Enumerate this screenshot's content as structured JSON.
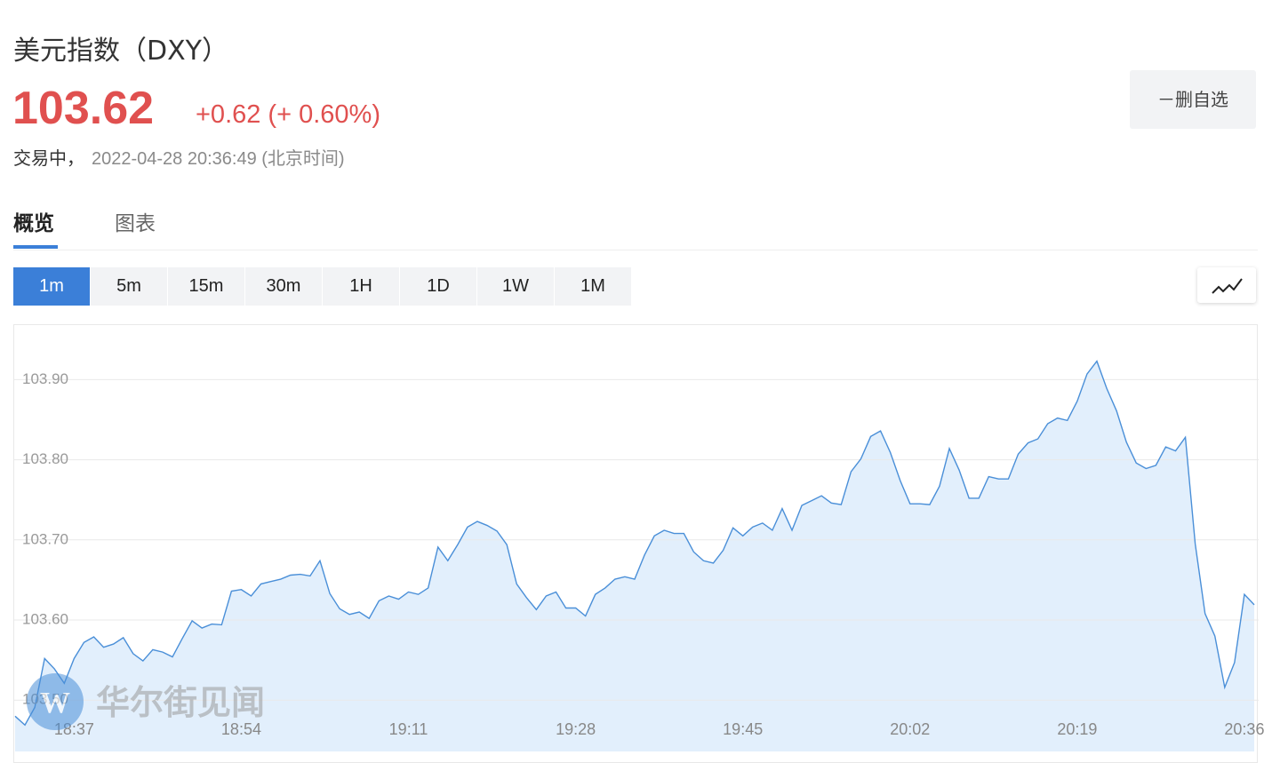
{
  "header": {
    "title": "美元指数（DXY）",
    "price": "103.62",
    "change": "+0.62 (+ 0.60%)",
    "status": "交易中，",
    "timestamp": "2022-04-28 20:36:49 (北京时间)",
    "watchlist_button": "－删自选"
  },
  "tabs": [
    "概览",
    "图表"
  ],
  "intervals": [
    "1m",
    "5m",
    "15m",
    "30m",
    "1H",
    "1D",
    "1W",
    "1M"
  ],
  "watermark": "华尔街见闻",
  "chart_data": {
    "type": "area",
    "color": "#4a8fd8",
    "fill_color": "#e2effc",
    "categories": [
      null,
      null,
      null,
      null,
      null,
      null,
      "18:37",
      null,
      null,
      null,
      null,
      null,
      null,
      null,
      null,
      null,
      null,
      null,
      null,
      null,
      null,
      null,
      null,
      "18:54",
      null,
      null,
      null,
      null,
      null,
      null,
      null,
      null,
      null,
      null,
      null,
      null,
      null,
      null,
      null,
      null,
      "19:11",
      null,
      null,
      null,
      null,
      null,
      null,
      null,
      null,
      null,
      null,
      null,
      null,
      null,
      null,
      null,
      null,
      "19:28",
      null,
      null,
      null,
      null,
      null,
      null,
      null,
      null,
      null,
      null,
      null,
      null,
      null,
      null,
      null,
      null,
      "19:45",
      null,
      null,
      null,
      null,
      null,
      null,
      null,
      null,
      null,
      null,
      null,
      null,
      null,
      null,
      null,
      null,
      "20:02",
      null,
      null,
      null,
      null,
      null,
      null,
      null,
      null,
      null,
      null,
      null,
      null,
      null,
      null,
      null,
      null,
      "20:19",
      null,
      null,
      null,
      null,
      null,
      null,
      null,
      null,
      null,
      null,
      null,
      null,
      null,
      null,
      null,
      null,
      "20:36",
      null
    ],
    "values": [
      103.48,
      103.469,
      103.491,
      103.552,
      103.539,
      103.521,
      103.552,
      103.572,
      103.579,
      103.566,
      103.57,
      103.578,
      103.558,
      103.549,
      103.563,
      103.56,
      103.554,
      103.577,
      103.599,
      103.59,
      103.595,
      103.594,
      103.636,
      103.638,
      103.63,
      103.645,
      103.648,
      103.651,
      103.656,
      103.657,
      103.655,
      103.674,
      103.633,
      103.614,
      103.607,
      103.61,
      103.602,
      103.624,
      103.63,
      103.626,
      103.635,
      103.632,
      103.64,
      103.691,
      103.674,
      103.694,
      103.716,
      103.723,
      103.718,
      103.711,
      103.694,
      103.645,
      103.628,
      103.613,
      103.63,
      103.635,
      103.615,
      103.615,
      103.605,
      103.632,
      103.64,
      103.651,
      103.654,
      103.651,
      103.681,
      103.705,
      103.712,
      103.708,
      103.708,
      103.685,
      103.674,
      103.671,
      103.687,
      103.715,
      103.705,
      103.716,
      103.721,
      103.712,
      103.739,
      103.712,
      103.743,
      103.749,
      103.755,
      103.746,
      103.744,
      103.785,
      103.801,
      103.829,
      103.836,
      103.809,
      103.774,
      103.745,
      103.745,
      103.744,
      103.767,
      103.814,
      103.787,
      103.752,
      103.752,
      103.779,
      103.776,
      103.776,
      103.807,
      103.821,
      103.826,
      103.845,
      103.852,
      103.849,
      103.873,
      103.907,
      103.923,
      103.889,
      103.861,
      103.822,
      103.796,
      103.789,
      103.793,
      103.816,
      103.811,
      103.828,
      103.695,
      103.608,
      103.58,
      103.516,
      103.547,
      103.632,
      103.619
    ],
    "ylim": [
      103.436,
      103.968
    ],
    "yticks": [
      {
        "value": 103.5,
        "label": "103.50"
      },
      {
        "value": 103.6,
        "label": "103.60"
      },
      {
        "value": 103.7,
        "label": "103.70"
      },
      {
        "value": 103.8,
        "label": "103.80"
      },
      {
        "value": 103.9,
        "label": "103.90"
      }
    ],
    "grid": true
  }
}
